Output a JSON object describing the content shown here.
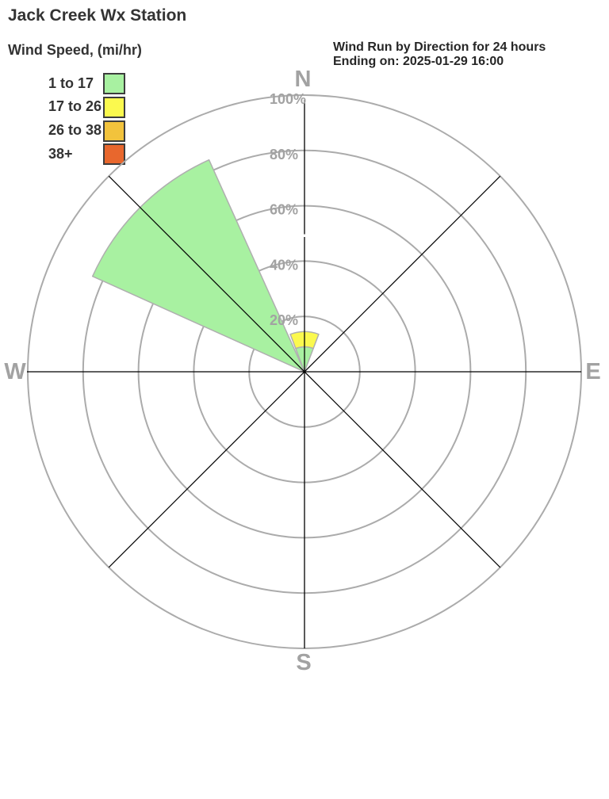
{
  "page_title": "Jack Creek Wx Station",
  "chart_data": {
    "type": "windrose",
    "title": "Wind Run by Direction for 24 hours",
    "subtitle": "Ending on: 2025-01-29 16:00",
    "legend_title": "Wind Speed, (mi/hr)",
    "compass_labels": [
      "N",
      "E",
      "S",
      "W"
    ],
    "ring_tick_percents": [
      20,
      40,
      60,
      80,
      100
    ],
    "ring_tick_labels": [
      "20%",
      "40%",
      "60%",
      "80%",
      "100%"
    ],
    "axis_max_percent": 100,
    "directions": [
      "N",
      "NE",
      "E",
      "SE",
      "S",
      "SW",
      "W",
      "NW"
    ],
    "sector_width_deg": 41.5,
    "series": [
      {
        "label": "1 to 17",
        "color": "#A8F1A1",
        "values_percent": [
          9,
          0,
          0,
          0,
          0,
          0,
          0,
          84
        ]
      },
      {
        "label": "17 to 26",
        "color": "#FBF94E",
        "values_percent": [
          5.5,
          0,
          0,
          0,
          0,
          0,
          0,
          0
        ]
      },
      {
        "label": "26 to 38",
        "color": "#F2C33C",
        "values_percent": [
          0,
          0,
          0,
          0,
          0,
          0,
          0,
          0
        ]
      },
      {
        "label": "38+",
        "color": "#E8672D",
        "values_percent": [
          0,
          0,
          0,
          0,
          0,
          0,
          0,
          0
        ]
      }
    ],
    "colors": {
      "ring": "#ABABAB",
      "axis": "#000000",
      "tick_label": "#A2A2A2",
      "compass_label": "#A2A2A2",
      "wedge_outline": "#AFAFAF"
    }
  }
}
